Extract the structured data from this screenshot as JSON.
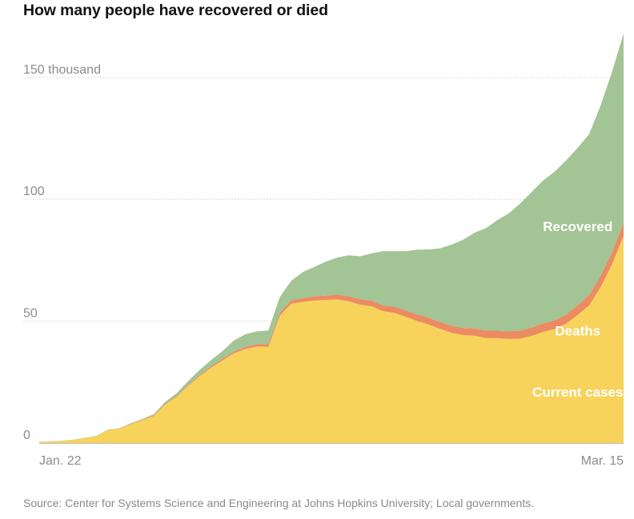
{
  "chart_data": {
    "type": "area",
    "stacked": true,
    "title": "How many people have recovered or died",
    "xlabel": "",
    "ylabel": "",
    "ylim": [
      0,
      167
    ],
    "y_unit_label": "thousand",
    "yticks": [
      {
        "value": 0,
        "label": "0"
      },
      {
        "value": 50,
        "label": "50"
      },
      {
        "value": 100,
        "label": "100"
      },
      {
        "value": 150,
        "label": "150 thousand"
      }
    ],
    "x_tick_labels": [
      {
        "index": 0,
        "label": "Jan. 22"
      },
      {
        "index": 53,
        "label": "Mar. 15"
      }
    ],
    "gridlines": true,
    "series": [
      {
        "name": "Current cases",
        "color": "#f7d35c",
        "values": [
          0.5,
          0.6,
          0.9,
          1.3,
          2.0,
          2.8,
          5.3,
          5.8,
          7.7,
          9.4,
          11.1,
          15.8,
          19.0,
          23.5,
          27.5,
          30.9,
          33.9,
          36.8,
          38.6,
          39.6,
          39.5,
          52.3,
          57.2,
          57.9,
          58.5,
          58.7,
          58.9,
          58.2,
          56.8,
          56.1,
          54.1,
          53.4,
          51.8,
          50.0,
          48.6,
          46.8,
          45.2,
          44.3,
          44.0,
          43.1,
          43.0,
          42.7,
          42.8,
          44.0,
          45.6,
          46.8,
          49.0,
          52.6,
          56.5,
          64.0,
          73.4,
          85.0
        ]
      },
      {
        "name": "Deaths",
        "color": "#ec8b61",
        "values": [
          0.02,
          0.02,
          0.03,
          0.04,
          0.06,
          0.08,
          0.1,
          0.13,
          0.17,
          0.21,
          0.26,
          0.3,
          0.36,
          0.43,
          0.49,
          0.56,
          0.64,
          0.72,
          0.81,
          0.91,
          1.0,
          1.1,
          1.4,
          1.5,
          1.7,
          1.8,
          2.0,
          2.1,
          2.2,
          2.3,
          2.4,
          2.5,
          2.6,
          2.7,
          2.8,
          2.8,
          2.9,
          2.9,
          3.0,
          3.0,
          3.1,
          3.2,
          3.3,
          3.4,
          3.5,
          3.6,
          3.8,
          4.0,
          4.3,
          4.6,
          5.0,
          5.4
        ]
      },
      {
        "name": "Recovered",
        "color": "#a3c494",
        "values": [
          0.03,
          0.03,
          0.04,
          0.05,
          0.06,
          0.1,
          0.12,
          0.14,
          0.24,
          0.28,
          0.5,
          0.8,
          1.1,
          1.5,
          2.0,
          2.6,
          3.2,
          4.6,
          5.2,
          5.3,
          5.7,
          6.5,
          8.0,
          10.7,
          12.0,
          13.9,
          15.2,
          16.7,
          17.6,
          19.4,
          22.2,
          22.8,
          24.3,
          26.6,
          28.0,
          30.3,
          33.3,
          36.2,
          39.3,
          42.1,
          45.4,
          48.4,
          52.3,
          55.7,
          58.7,
          61.0,
          63.2,
          64.5,
          66.0,
          70.0,
          74.0,
          77.6
        ]
      }
    ],
    "annotations": [
      {
        "label": "Recovered",
        "series": "Recovered",
        "index": 47
      },
      {
        "label": "Deaths",
        "series": "Deaths",
        "index": 47
      },
      {
        "label": "Current cases",
        "series": "Current cases",
        "index": 47
      }
    ]
  },
  "footer": {
    "source": "Source: Center for Systems Science and Engineering at Johns Hopkins University; Local governments."
  }
}
